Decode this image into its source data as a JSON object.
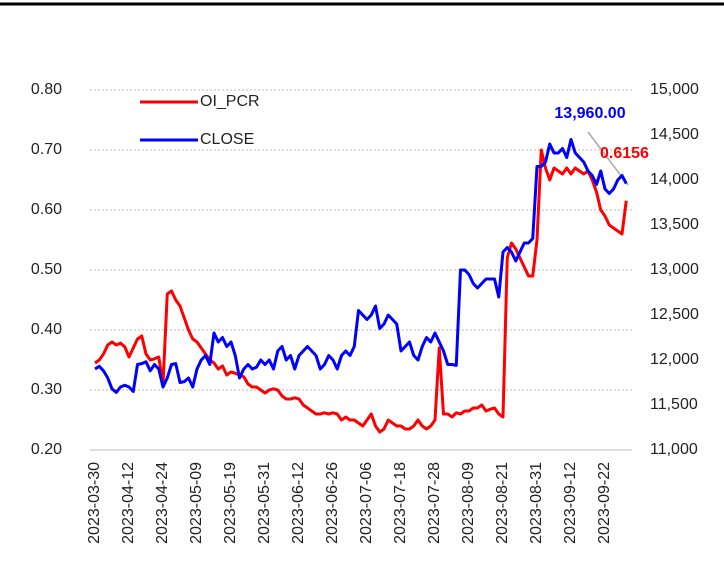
{
  "chart_data": {
    "type": "line",
    "categories": [
      "2023-03-30",
      null,
      null,
      null,
      null,
      null,
      null,
      null,
      "2023-04-12",
      null,
      null,
      null,
      null,
      null,
      null,
      null,
      "2023-04-24",
      null,
      null,
      null,
      null,
      null,
      null,
      null,
      "2023-05-09",
      null,
      null,
      null,
      null,
      null,
      null,
      null,
      "2023-05-19",
      null,
      null,
      null,
      null,
      null,
      null,
      null,
      "2023-05-31",
      null,
      null,
      null,
      null,
      null,
      null,
      null,
      "2023-06-12",
      null,
      null,
      null,
      null,
      null,
      null,
      null,
      "2023-06-26",
      null,
      null,
      null,
      null,
      null,
      null,
      null,
      "2023-07-06",
      null,
      null,
      null,
      null,
      null,
      null,
      null,
      "2023-07-18",
      null,
      null,
      null,
      null,
      null,
      null,
      null,
      "2023-07-28",
      null,
      null,
      null,
      null,
      null,
      null,
      null,
      "2023-08-09",
      null,
      null,
      null,
      null,
      null,
      null,
      null,
      "2023-08-21",
      null,
      null,
      null,
      null,
      null,
      null,
      null,
      "2023-08-31",
      null,
      null,
      null,
      null,
      null,
      null,
      null,
      "2023-09-12",
      null,
      null,
      null,
      null,
      null,
      null,
      null,
      "2023-09-22",
      null,
      null,
      null,
      null,
      null
    ],
    "series": [
      {
        "name": "OI_PCR",
        "color": "#ff0000",
        "last_value_label": "0.6156",
        "values": [
          0.345,
          0.35,
          0.36,
          0.375,
          0.38,
          0.375,
          0.378,
          0.372,
          0.355,
          0.37,
          0.385,
          0.39,
          0.36,
          0.35,
          0.352,
          0.355,
          0.31,
          0.46,
          0.465,
          0.45,
          0.44,
          0.42,
          0.4,
          0.385,
          0.38,
          0.37,
          0.36,
          0.35,
          0.345,
          0.335,
          0.34,
          0.325,
          0.33,
          0.328,
          0.325,
          0.322,
          0.31,
          0.305,
          0.305,
          0.3,
          0.295,
          0.3,
          0.302,
          0.3,
          0.29,
          0.285,
          0.285,
          0.287,
          0.285,
          0.275,
          0.27,
          0.265,
          0.26,
          0.26,
          0.262,
          0.26,
          0.262,
          0.26,
          0.25,
          0.255,
          0.25,
          0.25,
          0.245,
          0.24,
          0.25,
          0.26,
          0.24,
          0.23,
          0.235,
          0.25,
          0.245,
          0.24,
          0.24,
          0.235,
          0.235,
          0.24,
          0.25,
          0.24,
          0.235,
          0.24,
          0.25,
          0.37,
          0.26,
          0.26,
          0.255,
          0.262,
          0.26,
          0.265,
          0.265,
          0.27,
          0.27,
          0.275,
          0.265,
          0.268,
          0.27,
          0.26,
          0.255,
          0.52,
          0.545,
          0.535,
          0.52,
          0.505,
          0.49,
          0.49,
          0.55,
          0.7,
          0.67,
          0.65,
          0.67,
          0.665,
          0.66,
          0.67,
          0.66,
          0.67,
          0.665,
          0.66,
          0.665,
          0.65,
          0.63,
          0.6,
          0.59,
          0.575,
          0.57,
          0.565,
          0.56,
          0.6156
        ]
      },
      {
        "name": "CLOSE",
        "color": "#0000ff",
        "axis": "y2",
        "last_value_label": "13,960.00",
        "values": [
          11900,
          11930,
          11880,
          11800,
          11680,
          11640,
          11700,
          11720,
          11700,
          11650,
          11950,
          11960,
          11980,
          11880,
          11950,
          11900,
          11700,
          11800,
          11950,
          11960,
          11750,
          11760,
          11800,
          11700,
          11900,
          12000,
          12050,
          11950,
          12300,
          12200,
          12250,
          12150,
          12200,
          12050,
          11800,
          11900,
          11950,
          11900,
          11920,
          12000,
          11950,
          12000,
          11900,
          12100,
          12150,
          12000,
          12050,
          11900,
          12050,
          12100,
          12150,
          12100,
          12050,
          11900,
          11950,
          12050,
          12000,
          11900,
          12050,
          12100,
          12050,
          12150,
          12550,
          12500,
          12450,
          12500,
          12600,
          12350,
          12400,
          12500,
          12450,
          12400,
          12100,
          12150,
          12200,
          12050,
          12000,
          12150,
          12250,
          12200,
          12300,
          12200,
          12100,
          11950,
          11950,
          11940,
          13000,
          13000,
          12950,
          12850,
          12800,
          12850,
          12900,
          12900,
          12900,
          12700,
          13200,
          13250,
          13200,
          13100,
          13200,
          13300,
          13300,
          13350,
          14150,
          14150,
          14200,
          14400,
          14300,
          14300,
          14350,
          14250,
          14450,
          14300,
          14250,
          14200,
          14100,
          14050,
          13950,
          14100,
          13900,
          13850,
          13900,
          14000,
          14050,
          13960
        ]
      }
    ],
    "ylim": [
      0.2,
      0.8
    ],
    "yticks": [
      {
        "value": 0.2,
        "label": "0.20"
      },
      {
        "value": 0.3,
        "label": "0.30"
      },
      {
        "value": 0.4,
        "label": "0.40"
      },
      {
        "value": 0.5,
        "label": "0.50"
      },
      {
        "value": 0.6,
        "label": "0.60"
      },
      {
        "value": 0.7,
        "label": "0.70"
      },
      {
        "value": 0.8,
        "label": "0.80"
      }
    ],
    "y2lim": [
      11000,
      15000
    ],
    "y2ticks": [
      {
        "value": 11000,
        "label": "11,000"
      },
      {
        "value": 11500,
        "label": "11,500"
      },
      {
        "value": 12000,
        "label": "12,000"
      },
      {
        "value": 12500,
        "label": "12,500"
      },
      {
        "value": 13000,
        "label": "13,000"
      },
      {
        "value": 13500,
        "label": "13,500"
      },
      {
        "value": 14000,
        "label": "14,000"
      },
      {
        "value": 14500,
        "label": "14,500"
      },
      {
        "value": 15000,
        "label": "15,000"
      }
    ],
    "grid": true,
    "legend": "upper-left"
  }
}
